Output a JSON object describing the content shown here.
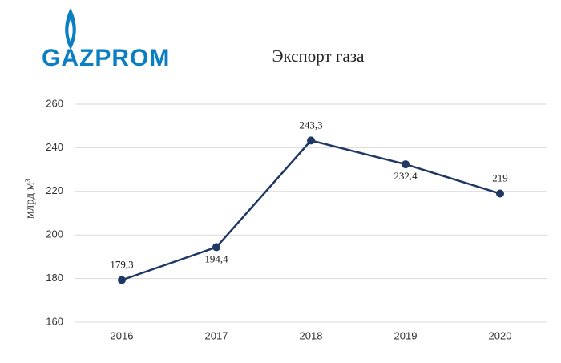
{
  "logo": "GAZPROM",
  "chart_data": {
    "type": "line",
    "title": "Экспорт газа",
    "y_label": "млрд м³",
    "categories": [
      "2016",
      "2017",
      "2018",
      "2019",
      "2020"
    ],
    "series": [
      {
        "color": "#1f3864",
        "values": [
          179.3,
          194.4,
          243.3,
          232.4,
          219
        ],
        "value_labels": [
          "179,3",
          "194,4",
          "243,3",
          "232,4",
          "219"
        ]
      }
    ],
    "ylim": [
      160,
      260
    ],
    "yticks": [
      160,
      180,
      200,
      220,
      240,
      260
    ],
    "grid": true
  }
}
